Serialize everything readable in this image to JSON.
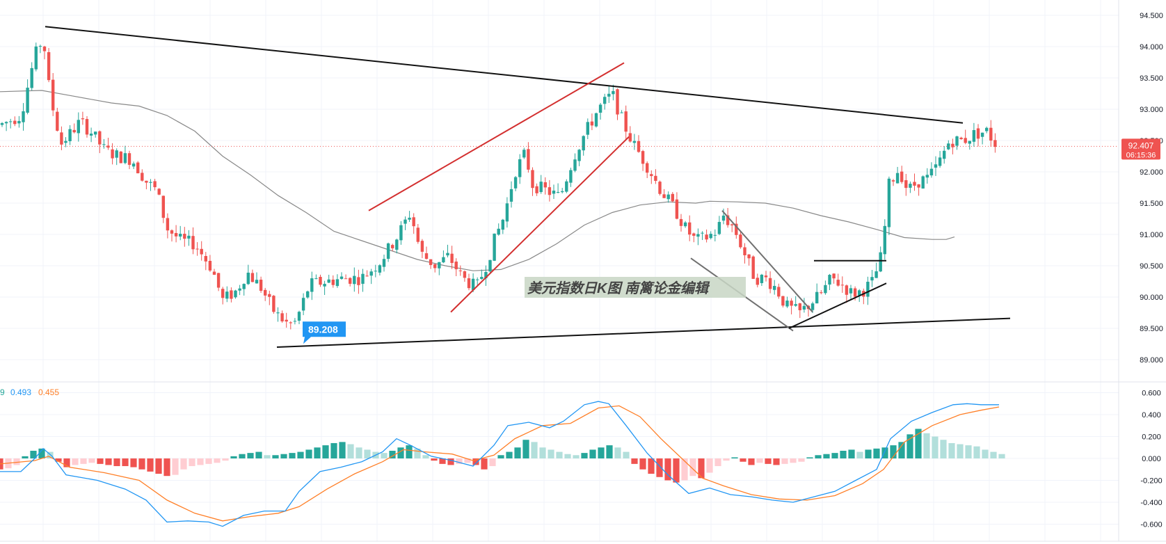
{
  "colors": {
    "up": "#26a69a",
    "down": "#ef5350",
    "up_light": "#b2dfdb",
    "down_light": "#ffcdd2",
    "ma_line": "#888888",
    "trendline": "#000000",
    "channel": "#d32f2f",
    "macd_line": "#2196f3",
    "signal_line": "#ff7f27",
    "price_badge": "#ef5350",
    "low_badge": "#2196f3"
  },
  "watermark": "美元指数日K图   南篱论金编辑",
  "price_badge": {
    "price": "92.407",
    "countdown": "06:15:36",
    "value": 92.407
  },
  "low_label": {
    "text": "89.208",
    "value": 89.208
  },
  "macd_legend": {
    "prefix": "9",
    "macd": "0.493",
    "signal": "0.455"
  },
  "chart_data": [
    {
      "type": "candlestick",
      "title": "",
      "ylim": [
        88.7,
        94.7
      ],
      "yticks": [
        "94.500",
        "94.000",
        "93.500",
        "93.000",
        "92.500",
        "92.000",
        "91.500",
        "91.000",
        "90.500",
        "90.000",
        "89.500",
        "89.000"
      ],
      "ytick_values": [
        94.5,
        94.0,
        93.5,
        93.0,
        92.5,
        92.0,
        91.5,
        91.0,
        90.5,
        90.0,
        89.5,
        89.0
      ],
      "grid": true,
      "current_price": 92.407,
      "swing_low": 89.208,
      "moving_average": [
        [
          0,
          93.28
        ],
        [
          60,
          93.3
        ],
        [
          100,
          93.22
        ],
        [
          160,
          93.1
        ],
        [
          200,
          93.05
        ],
        [
          240,
          92.9
        ],
        [
          280,
          92.65
        ],
        [
          320,
          92.25
        ],
        [
          360,
          91.95
        ],
        [
          400,
          91.62
        ],
        [
          440,
          91.35
        ],
        [
          480,
          91.05
        ],
        [
          520,
          90.9
        ],
        [
          560,
          90.75
        ],
        [
          600,
          90.6
        ],
        [
          640,
          90.5
        ],
        [
          680,
          90.42
        ],
        [
          720,
          90.44
        ],
        [
          760,
          90.6
        ],
        [
          800,
          90.85
        ],
        [
          840,
          91.15
        ],
        [
          880,
          91.35
        ],
        [
          920,
          91.47
        ],
        [
          960,
          91.52
        ],
        [
          1000,
          91.5
        ],
        [
          1020,
          91.53
        ],
        [
          1060,
          91.52
        ],
        [
          1100,
          91.5
        ],
        [
          1140,
          91.42
        ],
        [
          1180,
          91.3
        ],
        [
          1220,
          91.2
        ],
        [
          1260,
          91.08
        ],
        [
          1300,
          90.95
        ],
        [
          1340,
          90.92
        ],
        [
          1360,
          90.92
        ],
        [
          1372,
          90.96
        ]
      ],
      "trendlines": [
        {
          "color": "black",
          "points": [
            [
              65,
              94.32
            ],
            [
              1384,
              92.78
            ]
          ]
        },
        {
          "color": "black",
          "points": [
            [
              398,
              89.2
            ],
            [
              1452,
              89.66
            ]
          ]
        },
        {
          "color": "red",
          "points": [
            [
              530,
              91.38
            ],
            [
              897,
              93.74
            ]
          ]
        },
        {
          "color": "red",
          "points": [
            [
              648,
              89.76
            ],
            [
              904,
              92.56
            ]
          ]
        },
        {
          "color": "gray",
          "points": [
            [
              1038,
              91.38
            ],
            [
              1168,
              89.76
            ]
          ]
        },
        {
          "color": "gray",
          "points": [
            [
              993,
              90.62
            ],
            [
              1140,
              89.46
            ]
          ]
        },
        {
          "color": "black",
          "points": [
            [
              1134,
              89.5
            ],
            [
              1274,
              90.22
            ]
          ]
        },
        {
          "color": "black",
          "points": [
            [
              1170,
              90.58
            ],
            [
              1274,
              90.58
            ]
          ]
        }
      ]
    },
    {
      "type": "macd",
      "ylim": [
        -0.68,
        0.66
      ],
      "yticks": [
        "0.600",
        "0.400",
        "0.200",
        "0.000",
        "-0.200",
        "-0.400",
        "-0.600"
      ],
      "ytick_values": [
        0.6,
        0.4,
        0.2,
        0.0,
        -0.2,
        -0.4,
        -0.6
      ],
      "macd_value": 0.493,
      "signal_value": 0.455,
      "macd_line": [
        [
          0,
          -0.12
        ],
        [
          30,
          -0.12
        ],
        [
          50,
          0.0
        ],
        [
          62,
          0.09
        ],
        [
          75,
          0.02
        ],
        [
          95,
          -0.15
        ],
        [
          140,
          -0.2
        ],
        [
          180,
          -0.28
        ],
        [
          210,
          -0.38
        ],
        [
          240,
          -0.58
        ],
        [
          270,
          -0.57
        ],
        [
          300,
          -0.58
        ],
        [
          320,
          -0.62
        ],
        [
          350,
          -0.52
        ],
        [
          380,
          -0.48
        ],
        [
          410,
          -0.48
        ],
        [
          430,
          -0.3
        ],
        [
          460,
          -0.12
        ],
        [
          490,
          -0.08
        ],
        [
          520,
          -0.03
        ],
        [
          550,
          0.06
        ],
        [
          570,
          0.18
        ],
        [
          590,
          0.12
        ],
        [
          620,
          0.02
        ],
        [
          650,
          -0.02
        ],
        [
          680,
          -0.07
        ],
        [
          710,
          0.12
        ],
        [
          730,
          0.3
        ],
        [
          760,
          0.33
        ],
        [
          790,
          0.28
        ],
        [
          810,
          0.34
        ],
        [
          840,
          0.49
        ],
        [
          860,
          0.52
        ],
        [
          875,
          0.5
        ],
        [
          900,
          0.3
        ],
        [
          930,
          0.05
        ],
        [
          960,
          -0.15
        ],
        [
          990,
          -0.32
        ],
        [
          1020,
          -0.27
        ],
        [
          1050,
          -0.33
        ],
        [
          1080,
          -0.35
        ],
        [
          1110,
          -0.38
        ],
        [
          1140,
          -0.4
        ],
        [
          1170,
          -0.35
        ],
        [
          1200,
          -0.3
        ],
        [
          1230,
          -0.2
        ],
        [
          1260,
          -0.1
        ],
        [
          1280,
          0.18
        ],
        [
          1310,
          0.34
        ],
        [
          1340,
          0.42
        ],
        [
          1370,
          0.49
        ],
        [
          1390,
          0.5
        ],
        [
          1410,
          0.49
        ],
        [
          1436,
          0.49
        ]
      ],
      "signal_line": [
        [
          0,
          -0.05
        ],
        [
          50,
          -0.02
        ],
        [
          70,
          0.02
        ],
        [
          100,
          -0.08
        ],
        [
          150,
          -0.13
        ],
        [
          200,
          -0.2
        ],
        [
          240,
          -0.38
        ],
        [
          280,
          -0.5
        ],
        [
          320,
          -0.57
        ],
        [
          360,
          -0.53
        ],
        [
          400,
          -0.5
        ],
        [
          430,
          -0.44
        ],
        [
          470,
          -0.28
        ],
        [
          510,
          -0.14
        ],
        [
          550,
          -0.03
        ],
        [
          580,
          0.08
        ],
        [
          610,
          0.06
        ],
        [
          650,
          0.04
        ],
        [
          680,
          -0.02
        ],
        [
          710,
          0.03
        ],
        [
          740,
          0.18
        ],
        [
          780,
          0.3
        ],
        [
          820,
          0.32
        ],
        [
          860,
          0.46
        ],
        [
          890,
          0.48
        ],
        [
          920,
          0.38
        ],
        [
          950,
          0.18
        ],
        [
          980,
          0.0
        ],
        [
          1010,
          -0.18
        ],
        [
          1040,
          -0.25
        ],
        [
          1080,
          -0.33
        ],
        [
          1120,
          -0.37
        ],
        [
          1160,
          -0.38
        ],
        [
          1200,
          -0.34
        ],
        [
          1240,
          -0.23
        ],
        [
          1270,
          -0.1
        ],
        [
          1300,
          0.15
        ],
        [
          1340,
          0.3
        ],
        [
          1380,
          0.4
        ],
        [
          1410,
          0.44
        ],
        [
          1436,
          0.47
        ]
      ],
      "histogram": [
        [
          0,
          -0.1
        ],
        [
          12,
          -0.09
        ],
        [
          24,
          -0.06
        ],
        [
          36,
          0.02
        ],
        [
          48,
          0.07
        ],
        [
          60,
          0.09
        ],
        [
          72,
          0.06
        ],
        [
          84,
          -0.03
        ],
        [
          96,
          -0.08
        ],
        [
          108,
          -0.06
        ],
        [
          120,
          -0.05
        ],
        [
          132,
          -0.04
        ],
        [
          144,
          -0.05
        ],
        [
          156,
          -0.06
        ],
        [
          168,
          -0.07
        ],
        [
          180,
          -0.07
        ],
        [
          192,
          -0.08
        ],
        [
          204,
          -0.1
        ],
        [
          216,
          -0.12
        ],
        [
          228,
          -0.14
        ],
        [
          240,
          -0.16
        ],
        [
          252,
          -0.15
        ],
        [
          264,
          -0.1
        ],
        [
          276,
          -0.07
        ],
        [
          288,
          -0.06
        ],
        [
          300,
          -0.05
        ],
        [
          312,
          -0.04
        ],
        [
          324,
          -0.02
        ],
        [
          336,
          0.02
        ],
        [
          348,
          0.04
        ],
        [
          360,
          0.05
        ],
        [
          372,
          0.06
        ],
        [
          384,
          0.03
        ],
        [
          396,
          0.03
        ],
        [
          408,
          0.04
        ],
        [
          420,
          0.05
        ],
        [
          432,
          0.06
        ],
        [
          444,
          0.08
        ],
        [
          456,
          0.1
        ],
        [
          468,
          0.12
        ],
        [
          480,
          0.14
        ],
        [
          492,
          0.15
        ],
        [
          504,
          0.13
        ],
        [
          516,
          0.1
        ],
        [
          528,
          0.08
        ],
        [
          540,
          0.06
        ],
        [
          552,
          0.05
        ],
        [
          564,
          0.07
        ],
        [
          576,
          0.1
        ],
        [
          588,
          0.12
        ],
        [
          600,
          0.09
        ],
        [
          612,
          0.03
        ],
        [
          624,
          -0.02
        ],
        [
          636,
          -0.05
        ],
        [
          648,
          -0.06
        ],
        [
          660,
          -0.05
        ],
        [
          672,
          -0.04
        ],
        [
          684,
          -0.06
        ],
        [
          696,
          -0.1
        ],
        [
          708,
          -0.07
        ],
        [
          720,
          0.03
        ],
        [
          732,
          0.06
        ],
        [
          744,
          0.1
        ],
        [
          756,
          0.17
        ],
        [
          768,
          0.15
        ],
        [
          780,
          0.1
        ],
        [
          792,
          0.08
        ],
        [
          804,
          0.06
        ],
        [
          816,
          0.04
        ],
        [
          828,
          0.03
        ],
        [
          840,
          0.05
        ],
        [
          852,
          0.08
        ],
        [
          864,
          0.1
        ],
        [
          876,
          0.12
        ],
        [
          888,
          0.1
        ],
        [
          900,
          0.06
        ],
        [
          912,
          -0.05
        ],
        [
          924,
          -0.1
        ],
        [
          936,
          -0.14
        ],
        [
          948,
          -0.17
        ],
        [
          960,
          -0.2
        ],
        [
          972,
          -0.22
        ],
        [
          984,
          -0.2
        ],
        [
          996,
          -0.16
        ],
        [
          1008,
          -0.18
        ],
        [
          1020,
          -0.13
        ],
        [
          1032,
          -0.07
        ],
        [
          1044,
          -0.02
        ],
        [
          1056,
          0.01
        ],
        [
          1068,
          -0.03
        ],
        [
          1080,
          -0.06
        ],
        [
          1092,
          -0.04
        ],
        [
          1104,
          -0.05
        ],
        [
          1116,
          -0.06
        ],
        [
          1128,
          -0.05
        ],
        [
          1140,
          -0.04
        ],
        [
          1152,
          -0.03
        ],
        [
          1164,
          0.01
        ],
        [
          1176,
          0.03
        ],
        [
          1188,
          0.04
        ],
        [
          1200,
          0.05
        ],
        [
          1212,
          0.07
        ],
        [
          1224,
          0.08
        ],
        [
          1236,
          0.06
        ],
        [
          1248,
          0.08
        ],
        [
          1260,
          0.09
        ],
        [
          1272,
          0.1
        ],
        [
          1284,
          0.12
        ],
        [
          1296,
          0.15
        ],
        [
          1308,
          0.22
        ],
        [
          1320,
          0.27
        ],
        [
          1332,
          0.23
        ],
        [
          1344,
          0.2
        ],
        [
          1356,
          0.17
        ],
        [
          1368,
          0.14
        ],
        [
          1380,
          0.13
        ],
        [
          1392,
          0.12
        ],
        [
          1404,
          0.11
        ],
        [
          1416,
          0.08
        ],
        [
          1428,
          0.06
        ],
        [
          1440,
          0.04
        ]
      ]
    }
  ]
}
